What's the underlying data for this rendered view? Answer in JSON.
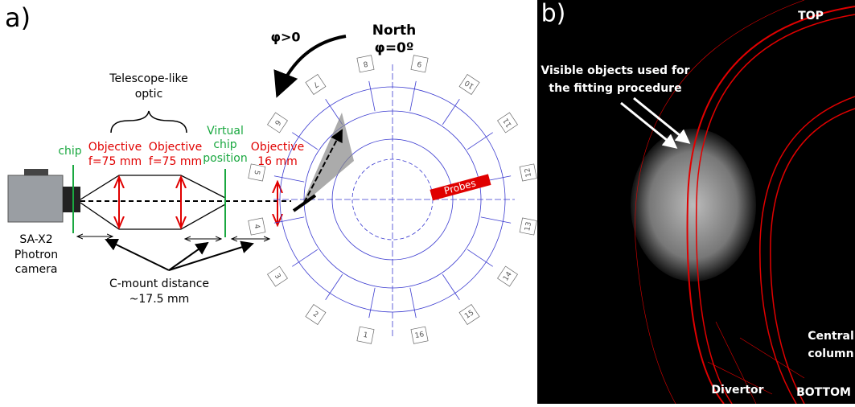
{
  "panel_a": {
    "label": "a)",
    "telescope_label": [
      "Telescope-like",
      "optic"
    ],
    "chip_label": "chip",
    "objective_1": [
      "Objective",
      "f=75 mm"
    ],
    "objective_2": [
      "Objective",
      "f=75 mm"
    ],
    "virtual_chip": [
      "Virtual",
      "chip",
      "position"
    ],
    "objective_3": [
      "Objective",
      "16 mm"
    ],
    "camera": [
      "SA-X2",
      "Photron",
      "camera"
    ],
    "cmount": [
      "C-mount distance",
      "~17.5 mm"
    ],
    "phi_positive": "φ>0",
    "north": "North",
    "phi_zero": "φ=0º",
    "probes": "Probes",
    "ports": [
      "1",
      "2",
      "3",
      "4",
      "5",
      "6",
      "7",
      "8",
      "9",
      "10",
      "11",
      "12",
      "13",
      "14",
      "15",
      "16"
    ]
  },
  "panel_b": {
    "label": "b)",
    "top": "TOP",
    "visible_objects": [
      "Visible objects used for",
      "the fitting procedure"
    ],
    "divertor": "Divertor",
    "central_column": [
      "Central",
      "column"
    ],
    "bottom": "BOTTOM"
  }
}
